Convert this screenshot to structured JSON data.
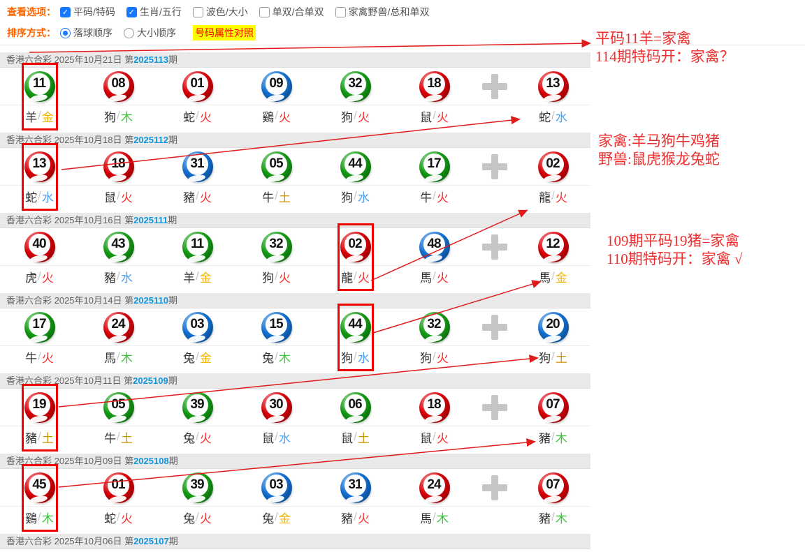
{
  "lottery_name": "香港六合彩",
  "issue_prefix": "第",
  "issue_suffix": "期",
  "toolbar": {
    "view_label": "查看选项：",
    "view_options": [
      {
        "label": "平码/特码",
        "checked": true
      },
      {
        "label": "生肖/五行",
        "checked": true
      },
      {
        "label": "波色/大小",
        "checked": false
      },
      {
        "label": "单双/合单双",
        "checked": false
      },
      {
        "label": "家禽野兽/总和单双",
        "checked": false
      }
    ],
    "sort_label": "排序方式：",
    "sort_options": [
      {
        "label": "落球顺序",
        "selected": true
      },
      {
        "label": "大小顺序",
        "selected": false
      }
    ],
    "compare_link": "号码属性对照"
  },
  "draws": [
    {
      "date": "2025年10月21日",
      "issue": "2025113",
      "balls": [
        {
          "n": "11",
          "c": "green",
          "z": "羊",
          "e": "金",
          "hl": true
        },
        {
          "n": "08",
          "c": "red",
          "z": "狗",
          "e": "木"
        },
        {
          "n": "01",
          "c": "red",
          "z": "蛇",
          "e": "火"
        },
        {
          "n": "09",
          "c": "blue",
          "z": "鷄",
          "e": "火"
        },
        {
          "n": "32",
          "c": "green",
          "z": "狗",
          "e": "火"
        },
        {
          "n": "18",
          "c": "red",
          "z": "鼠",
          "e": "火"
        }
      ],
      "special": {
        "n": "13",
        "c": "red",
        "z": "蛇",
        "e": "水"
      }
    },
    {
      "date": "2025年10月18日",
      "issue": "2025112",
      "balls": [
        {
          "n": "13",
          "c": "red",
          "z": "蛇",
          "e": "水",
          "hl": true
        },
        {
          "n": "18",
          "c": "red",
          "z": "鼠",
          "e": "火"
        },
        {
          "n": "31",
          "c": "blue",
          "z": "豬",
          "e": "火"
        },
        {
          "n": "05",
          "c": "green",
          "z": "牛",
          "e": "土"
        },
        {
          "n": "44",
          "c": "green",
          "z": "狗",
          "e": "水"
        },
        {
          "n": "17",
          "c": "green",
          "z": "牛",
          "e": "火"
        }
      ],
      "special": {
        "n": "02",
        "c": "red",
        "z": "龍",
        "e": "火"
      }
    },
    {
      "date": "2025年10月16日",
      "issue": "2025111",
      "balls": [
        {
          "n": "40",
          "c": "red",
          "z": "虎",
          "e": "火"
        },
        {
          "n": "43",
          "c": "green",
          "z": "豬",
          "e": "水"
        },
        {
          "n": "11",
          "c": "green",
          "z": "羊",
          "e": "金"
        },
        {
          "n": "32",
          "c": "green",
          "z": "狗",
          "e": "火"
        },
        {
          "n": "02",
          "c": "red",
          "z": "龍",
          "e": "火",
          "hl": true
        },
        {
          "n": "48",
          "c": "blue",
          "z": "馬",
          "e": "火"
        }
      ],
      "special": {
        "n": "12",
        "c": "red",
        "z": "馬",
        "e": "金"
      }
    },
    {
      "date": "2025年10月14日",
      "issue": "2025110",
      "balls": [
        {
          "n": "17",
          "c": "green",
          "z": "牛",
          "e": "火"
        },
        {
          "n": "24",
          "c": "red",
          "z": "馬",
          "e": "木"
        },
        {
          "n": "03",
          "c": "blue",
          "z": "兔",
          "e": "金"
        },
        {
          "n": "15",
          "c": "blue",
          "z": "兔",
          "e": "木"
        },
        {
          "n": "44",
          "c": "green",
          "z": "狗",
          "e": "水",
          "hl": true
        },
        {
          "n": "32",
          "c": "green",
          "z": "狗",
          "e": "火"
        }
      ],
      "special": {
        "n": "20",
        "c": "blue",
        "z": "狗",
        "e": "土"
      }
    },
    {
      "date": "2025年10月11日",
      "issue": "2025109",
      "balls": [
        {
          "n": "19",
          "c": "red",
          "z": "豬",
          "e": "土",
          "hl": true
        },
        {
          "n": "05",
          "c": "green",
          "z": "牛",
          "e": "土"
        },
        {
          "n": "39",
          "c": "green",
          "z": "兔",
          "e": "火"
        },
        {
          "n": "30",
          "c": "red",
          "z": "鼠",
          "e": "水"
        },
        {
          "n": "06",
          "c": "green",
          "z": "鼠",
          "e": "土"
        },
        {
          "n": "18",
          "c": "red",
          "z": "鼠",
          "e": "火"
        }
      ],
      "special": {
        "n": "07",
        "c": "red",
        "z": "豬",
        "e": "木"
      }
    },
    {
      "date": "2025年10月09日",
      "issue": "2025108",
      "balls": [
        {
          "n": "45",
          "c": "red",
          "z": "鷄",
          "e": "木",
          "hl": true
        },
        {
          "n": "01",
          "c": "red",
          "z": "蛇",
          "e": "火"
        },
        {
          "n": "39",
          "c": "green",
          "z": "兔",
          "e": "火"
        },
        {
          "n": "03",
          "c": "blue",
          "z": "兔",
          "e": "金"
        },
        {
          "n": "31",
          "c": "blue",
          "z": "豬",
          "e": "火"
        },
        {
          "n": "24",
          "c": "red",
          "z": "馬",
          "e": "木"
        }
      ],
      "special": {
        "n": "07",
        "c": "red",
        "z": "豬",
        "e": "木"
      }
    },
    {
      "date": "2025年10月06日",
      "issue": "2025107",
      "balls": [],
      "special": null
    }
  ],
  "annotations": [
    {
      "lines": [
        "平码11羊=家禽",
        "114期特码开：家禽？"
      ]
    },
    {
      "lines": [
        "家禽:羊马狗牛鸡猪",
        "野兽:鼠虎猴龙兔蛇"
      ]
    },
    {
      "lines": [
        "109期平码19猪=家禽",
        "110期特码开：家禽 √"
      ]
    }
  ],
  "colors": {
    "ball": {
      "red": "#df0008",
      "green": "#14a014",
      "blue": "#1273d8"
    },
    "element": {
      "金": "#f6b500",
      "木": "#3cc43c",
      "水": "#4aa0f5",
      "火": "#fb2e2e",
      "土": "#cf9500"
    },
    "accent_orange": "#ff6600",
    "issue_blue": "#1296db",
    "check_blue": "#1677ff",
    "highlight_red": "#f10000",
    "annotation_red": "#ee2f2f",
    "tag_bg": "#ffff00",
    "tag_text": "#ff0000"
  }
}
